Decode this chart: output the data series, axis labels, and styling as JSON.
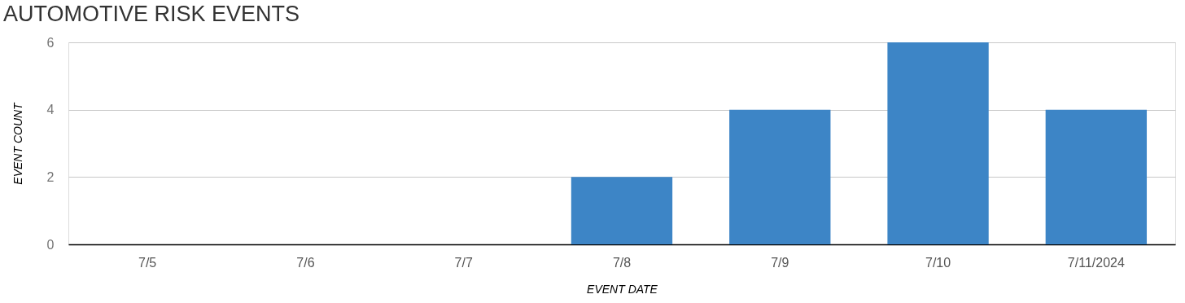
{
  "chart_data": {
    "type": "bar",
    "title": "AUTOMOTIVE RISK EVENTS",
    "xlabel": "EVENT DATE",
    "ylabel": "EVENT COUNT",
    "categories": [
      "7/5",
      "7/6",
      "7/7",
      "7/8",
      "7/9",
      "7/10",
      "7/11/2024"
    ],
    "values": [
      0,
      0,
      0,
      2,
      4,
      6,
      4
    ],
    "color": "#3d85c6",
    "ylim": [
      0,
      6
    ],
    "yticks": [
      0,
      2,
      4,
      6
    ],
    "grid": "y"
  }
}
